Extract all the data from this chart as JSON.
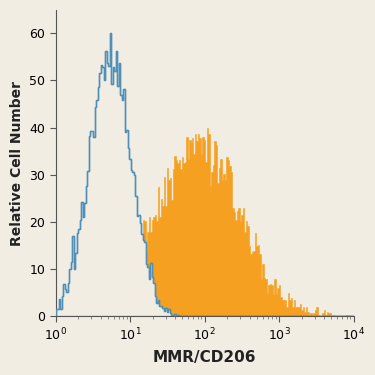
{
  "title": "",
  "xlabel": "MMR/CD206",
  "ylabel": "Relative Cell Number",
  "xlim_log": [
    1,
    10000
  ],
  "ylim": [
    0,
    65
  ],
  "yticks": [
    0,
    10,
    20,
    30,
    40,
    50,
    60
  ],
  "blue_color": "#7ab8d4",
  "orange_color": "#f5a020",
  "background_color": "#f2ede3",
  "blue_line_color": "#5090b8",
  "orange_line_color": "#d08000",
  "n_bins": 200,
  "blue_mean_log": 0.72,
  "blue_sigma_log": 0.28,
  "blue_peak": 60,
  "blue_n": 8000,
  "orange_mean_log": 1.92,
  "orange_sigma_log": 0.55,
  "orange_peak": 40,
  "orange_n": 8000,
  "seed_blue": 1234,
  "seed_orange": 5678
}
